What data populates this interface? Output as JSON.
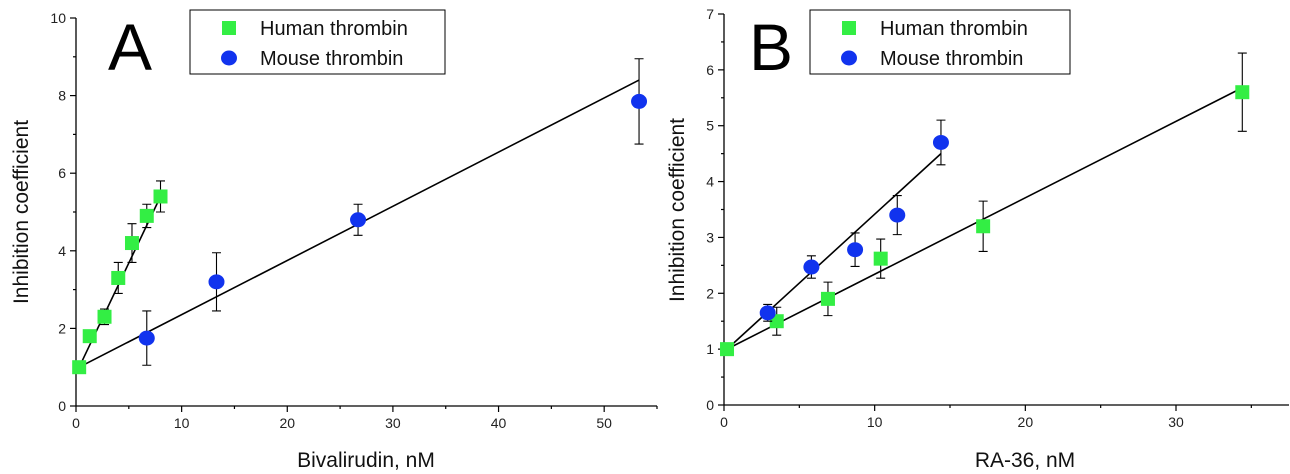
{
  "chart_data": [
    {
      "type": "scatter",
      "panel_label": "A",
      "xlabel": "Bivalirudin, nM",
      "ylabel": "Inhibition coefficient",
      "xlim": [
        0,
        55
      ],
      "ylim": [
        0,
        10
      ],
      "xticks": [
        0,
        10,
        20,
        30,
        40,
        50
      ],
      "yticks": [
        0,
        2,
        4,
        6,
        8,
        10
      ],
      "legend": {
        "position": "top-center"
      },
      "series": [
        {
          "name": "Human thrombin",
          "marker": "square",
          "color": "#33ee44",
          "x": [
            0.3,
            1.3,
            2.7,
            4.0,
            5.3,
            6.7,
            8.0
          ],
          "y": [
            1.0,
            1.8,
            2.3,
            3.3,
            4.2,
            4.9,
            5.4
          ],
          "err": [
            0.1,
            0.1,
            0.2,
            0.4,
            0.5,
            0.3,
            0.4
          ],
          "fit": {
            "x": [
              0.3,
              8.0
            ],
            "y": [
              1.0,
              5.4
            ]
          }
        },
        {
          "name": "Mouse thrombin",
          "marker": "circle",
          "color": "#1133ee",
          "x": [
            6.7,
            13.3,
            26.7,
            53.3
          ],
          "y": [
            1.75,
            3.2,
            4.8,
            7.85
          ],
          "err": [
            0.7,
            0.75,
            0.4,
            1.1
          ],
          "fit": {
            "x": [
              0.3,
              53.3
            ],
            "y": [
              1.0,
              8.4
            ]
          }
        }
      ]
    },
    {
      "type": "scatter",
      "panel_label": "B",
      "xlabel": "RA-36, nM",
      "ylabel": "Inhibition coefficient",
      "xlim": [
        0,
        37.5
      ],
      "ylim": [
        0,
        7
      ],
      "xticks": [
        0,
        10,
        20,
        30
      ],
      "yticks": [
        0,
        1,
        2,
        3,
        4,
        5,
        6,
        7
      ],
      "legend": {
        "position": "top-left"
      },
      "series": [
        {
          "name": "Human thrombin",
          "marker": "square",
          "color": "#33ee44",
          "x": [
            0.2,
            3.5,
            6.9,
            10.4,
            17.2,
            34.4
          ],
          "y": [
            1.0,
            1.5,
            1.9,
            2.62,
            3.2,
            5.6
          ],
          "err": [
            0.05,
            0.25,
            0.3,
            0.35,
            0.45,
            0.7
          ],
          "fit": {
            "x": [
              0.2,
              34.4
            ],
            "y": [
              1.0,
              5.68
            ]
          }
        },
        {
          "name": "Mouse thrombin",
          "marker": "circle",
          "color": "#1133ee",
          "x": [
            2.9,
            5.8,
            8.7,
            11.5,
            14.4
          ],
          "y": [
            1.65,
            2.47,
            2.78,
            3.4,
            4.7
          ],
          "err": [
            0.15,
            0.2,
            0.3,
            0.35,
            0.4
          ],
          "fit": {
            "x": [
              0.2,
              14.4
            ],
            "y": [
              1.0,
              4.5
            ]
          }
        }
      ]
    }
  ]
}
